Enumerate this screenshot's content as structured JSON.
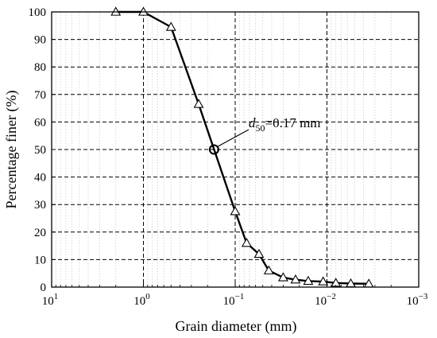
{
  "chart_data": {
    "type": "line",
    "title": "",
    "xlabel": "Grain diameter (mm)",
    "ylabel": "Percentage finer (%)",
    "x_scale": "log",
    "x_reversed": true,
    "xlim": [
      10,
      0.001
    ],
    "ylim": [
      0,
      100
    ],
    "x_ticks": [
      {
        "value": 10,
        "base": "10",
        "exp": "1"
      },
      {
        "value": 1,
        "base": "10",
        "exp": "0"
      },
      {
        "value": 0.1,
        "base": "10",
        "exp": "−1"
      },
      {
        "value": 0.01,
        "base": "10",
        "exp": "−2"
      },
      {
        "value": 0.001,
        "base": "10",
        "exp": "−3"
      }
    ],
    "y_ticks": [
      "0",
      "10",
      "20",
      "30",
      "40",
      "50",
      "60",
      "70",
      "80",
      "90",
      "100"
    ],
    "grid": true,
    "series": [
      {
        "marker": "triangle",
        "points": [
          {
            "x": 2.0,
            "y": 100
          },
          {
            "x": 1.0,
            "y": 100
          },
          {
            "x": 0.5,
            "y": 94.5
          },
          {
            "x": 0.25,
            "y": 66.5
          },
          {
            "x": 0.1,
            "y": 27.5
          },
          {
            "x": 0.075,
            "y": 16
          },
          {
            "x": 0.055,
            "y": 12
          },
          {
            "x": 0.043,
            "y": 6
          },
          {
            "x": 0.03,
            "y": 3.5
          },
          {
            "x": 0.022,
            "y": 2.7
          },
          {
            "x": 0.016,
            "y": 2.2
          },
          {
            "x": 0.011,
            "y": 2.0
          },
          {
            "x": 0.008,
            "y": 1.5
          },
          {
            "x": 0.0055,
            "y": 1.3
          },
          {
            "x": 0.0035,
            "y": 1.2
          }
        ]
      }
    ],
    "annotations": [
      {
        "x": 0.17,
        "y": 50,
        "marker": "circle",
        "symbol": "d",
        "subscript": "50",
        "value_text": "=0.17 mm"
      }
    ]
  }
}
